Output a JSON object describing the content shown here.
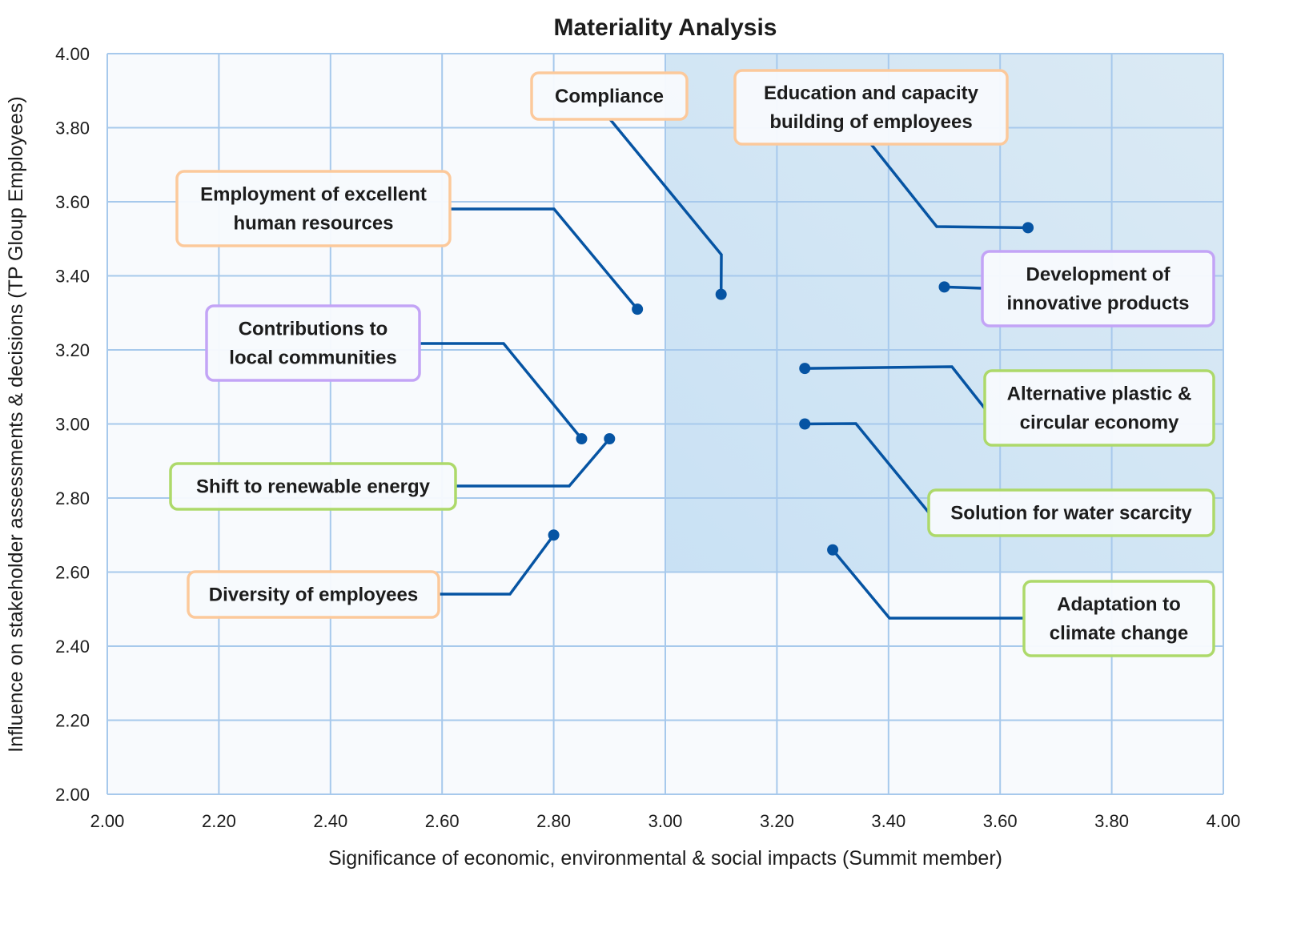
{
  "chart_data": {
    "type": "scatter",
    "title": "Materiality Analysis",
    "xlabel": "Significance of economic, environmental & social impacts (Summit member)",
    "ylabel": "Influence on stakeholder assessments & decisions (TP Gloup Employees)",
    "xlim": [
      2.0,
      4.0
    ],
    "ylim": [
      2.0,
      4.0
    ],
    "x_ticks": [
      "2.00",
      "2.20",
      "2.40",
      "2.60",
      "2.80",
      "3.00",
      "3.20",
      "3.40",
      "3.60",
      "3.80",
      "4.00"
    ],
    "y_ticks": [
      "2.00",
      "2.20",
      "2.40",
      "2.60",
      "2.80",
      "3.00",
      "3.20",
      "3.40",
      "3.60",
      "3.80",
      "4.00"
    ],
    "grid": true,
    "highlight_region": {
      "x": [
        3.0,
        4.0
      ],
      "y": [
        2.6,
        4.0
      ]
    },
    "colors": {
      "marker": "#0654a3",
      "grid": "#a7c9ec",
      "highlight": "#cfe5f5",
      "orange": "#fcc99b",
      "purple": "#c3a4f6",
      "green": "#add96a"
    },
    "points": [
      {
        "label": [
          "Compliance"
        ],
        "x": 3.1,
        "y": 3.35,
        "category": "orange"
      },
      {
        "label": [
          "Education and capacity",
          "building of employees"
        ],
        "x": 3.65,
        "y": 3.53,
        "category": "orange"
      },
      {
        "label": [
          "Employment of excellent",
          "human resources"
        ],
        "x": 2.95,
        "y": 3.31,
        "category": "orange"
      },
      {
        "label": [
          "Development of",
          "innovative products"
        ],
        "x": 3.5,
        "y": 3.37,
        "category": "purple"
      },
      {
        "label": [
          "Contributions to",
          "local communities"
        ],
        "x": 2.85,
        "y": 2.96,
        "category": "purple"
      },
      {
        "label": [
          "Alternative plastic &",
          "circular economy"
        ],
        "x": 3.25,
        "y": 3.15,
        "category": "green"
      },
      {
        "label": [
          "Shift to renewable energy"
        ],
        "x": 2.9,
        "y": 2.96,
        "category": "green"
      },
      {
        "label": [
          "Solution for water scarcity"
        ],
        "x": 3.25,
        "y": 3.0,
        "category": "green"
      },
      {
        "label": [
          "Diversity of employees"
        ],
        "x": 2.8,
        "y": 2.7,
        "category": "orange"
      },
      {
        "label": [
          "Adaptation to",
          "climate change"
        ],
        "x": 3.3,
        "y": 2.66,
        "category": "green"
      }
    ]
  }
}
